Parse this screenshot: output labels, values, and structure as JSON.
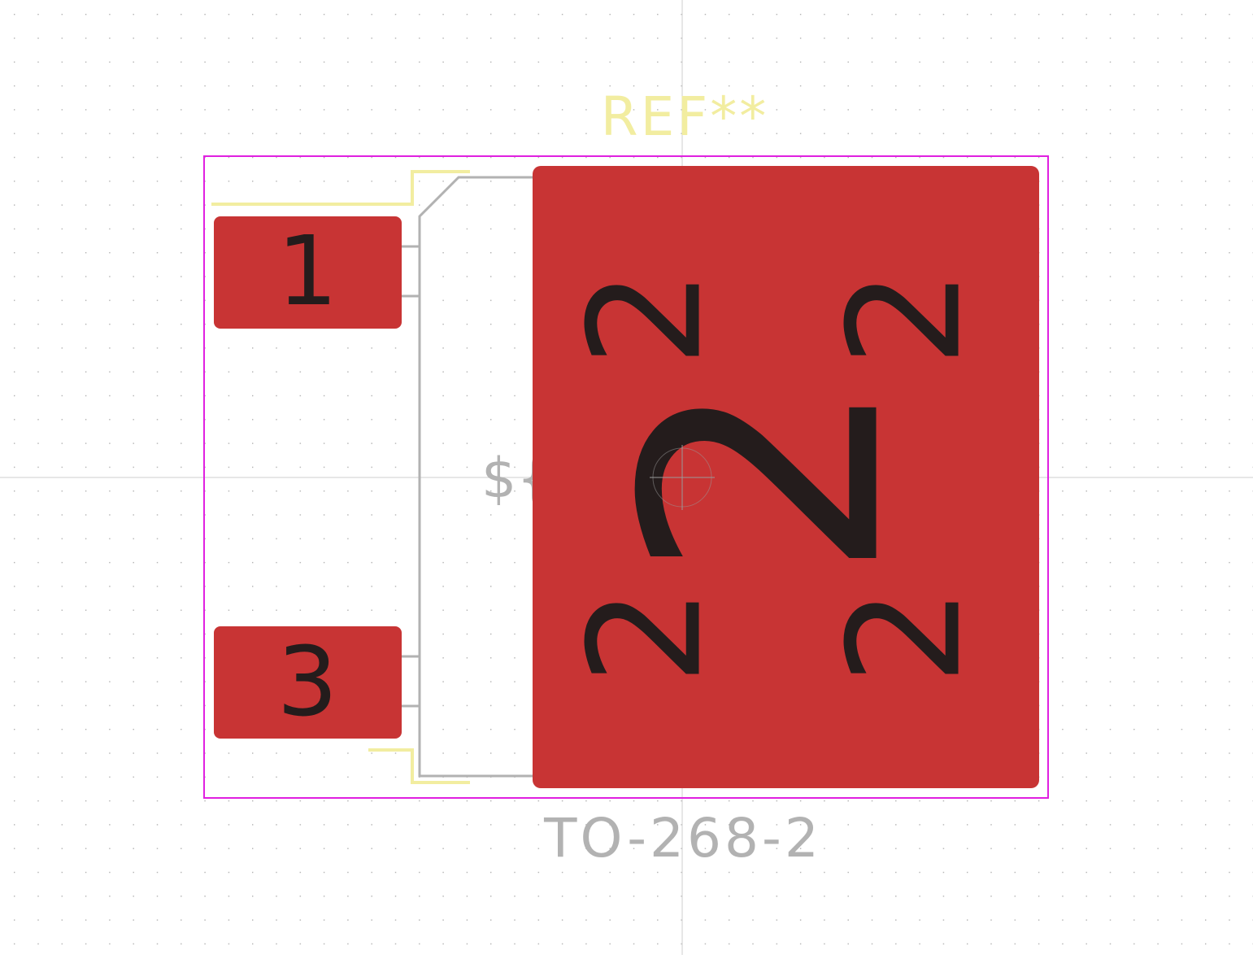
{
  "footprint": {
    "reference": "REF**",
    "value": "TO-268-2",
    "fab_ref_partial": "${",
    "pads": [
      {
        "number": "1",
        "label": "1"
      },
      {
        "number": "3",
        "label": "3"
      },
      {
        "number": "2",
        "label_main": "2",
        "label_corner": "2"
      }
    ]
  },
  "colors": {
    "background": "#ffffff",
    "grid_dot": "#b0b0b0",
    "axis": "#c8c8c8",
    "courtyard": "#e020e0",
    "silkscreen": "#f2eda0",
    "fab": "#b2b2b2",
    "pad": "#c83434",
    "pad_text": "#241c1c"
  }
}
